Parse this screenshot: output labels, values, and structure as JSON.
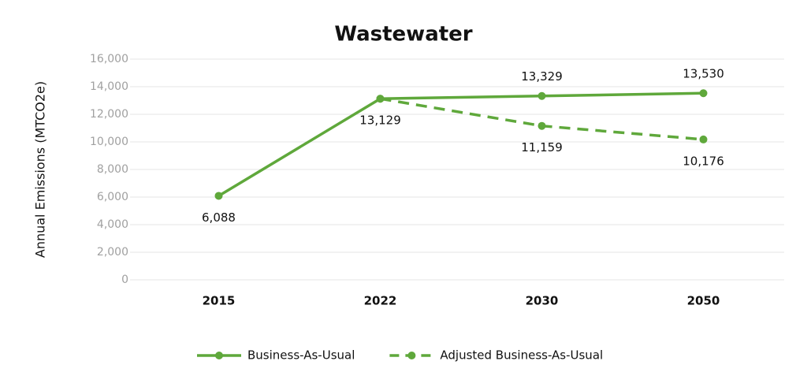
{
  "chart_data": {
    "type": "line",
    "title": "Wastewater",
    "y_label": "Annual Emissions (MTCO2e)",
    "categories": [
      "2015",
      "2022",
      "2030",
      "2050"
    ],
    "series": [
      {
        "name": "Business-As-Usual",
        "color": "#5fa83b",
        "dashed": false,
        "values": [
          6088,
          13129,
          13329,
          13530
        ],
        "value_labels": [
          "6,088",
          "13,129",
          "13,329",
          "13,530"
        ]
      },
      {
        "name": "Adjusted Business-As-Usual",
        "color": "#5fa83b",
        "dashed": true,
        "values": [
          null,
          13129,
          11159,
          10176
        ],
        "value_labels": [
          null,
          null,
          "11,159",
          "10,176"
        ]
      }
    ],
    "ylim": [
      0,
      16000
    ],
    "yticks": [
      0,
      {
        "value": 2000,
        "label": "2,000"
      },
      {
        "value": 4000,
        "label": "4,000"
      },
      {
        "value": 6000,
        "label": "6,000"
      },
      {
        "value": 8000,
        "label": "8,000"
      },
      {
        "value": 10000,
        "label": "10,000"
      },
      {
        "value": 12000,
        "label": "12,000"
      },
      {
        "value": 14000,
        "label": "14,000"
      },
      {
        "value": 16000,
        "label": "16,000"
      }
    ],
    "grid": true,
    "legend": "bottom"
  }
}
